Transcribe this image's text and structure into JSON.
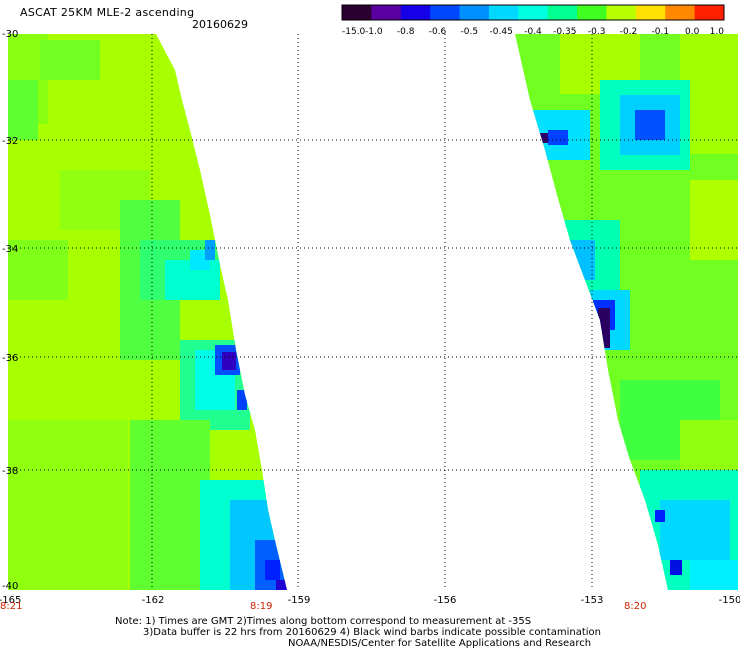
{
  "header": {
    "title": "ASCAT 25KM MLE-2 ascending",
    "date": "20160629"
  },
  "colorbar": {
    "labels": [
      "-15.0",
      "-1.0",
      "-0.8",
      "-0.6",
      "-0.5",
      "-0.45",
      "-0.4",
      "-0.35",
      "-0.3",
      "-0.2",
      "-0.1",
      "0.0",
      "1.0"
    ],
    "colors": [
      "#2a0030",
      "#5a00a0",
      "#1500e8",
      "#0048ff",
      "#0090ff",
      "#00d8ff",
      "#00ffe0",
      "#00ff90",
      "#40ff20",
      "#b8ff00",
      "#ffe000",
      "#ff8800",
      "#ff2000"
    ]
  },
  "axes": {
    "y_labels": [
      "-30",
      "-32",
      "-34",
      "-36",
      "-38",
      "-40"
    ],
    "x_labels": [
      "-165",
      "-162",
      "-159",
      "-156",
      "-153",
      "-150"
    ],
    "time_labels": [
      "8:21",
      "8:19",
      "8:20"
    ]
  },
  "notes": {
    "line1": "Note: 1) Times are GMT 2)Times along bottom correspond to measurement at -35S",
    "line2": "3)Data buffer is 22 hrs from 20160629 4) Black wind barbs indicate possible contamination",
    "line3": "NOAA/NESDIS/Center for Satellite Applications and Research"
  },
  "colors": {
    "time_label": "#cc2200",
    "grid": "#000000",
    "base_field": "#a8ff00"
  }
}
